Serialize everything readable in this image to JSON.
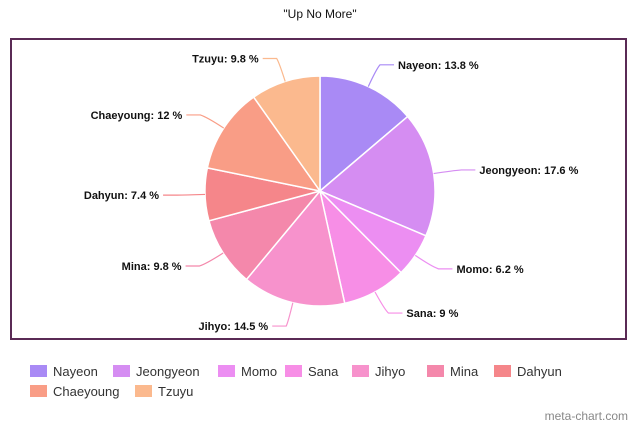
{
  "chart_data": {
    "type": "pie",
    "title": "\"Up No More\"",
    "slices": [
      {
        "label": "Nayeon",
        "value": 13.8,
        "display": "Nayeon: 13.8 %",
        "color": "#a98af5"
      },
      {
        "label": "Jeongyeon",
        "value": 17.6,
        "display": "Jeongyeon: 17.6 %",
        "color": "#d58df2"
      },
      {
        "label": "Momo",
        "value": 6.2,
        "display": "Momo: 6.2 %",
        "color": "#ec8ef2"
      },
      {
        "label": "Sana",
        "value": 9,
        "display": "Sana: 9 %",
        "color": "#f78ee6"
      },
      {
        "label": "Jihyo",
        "value": 14.5,
        "display": "Jihyo: 14.5 %",
        "color": "#f792cc"
      },
      {
        "label": "Mina",
        "value": 9.8,
        "display": "Mina: 9.8 %",
        "color": "#f488ab"
      },
      {
        "label": "Dahyun",
        "value": 7.4,
        "display": "Dahyun: 7.4 %",
        "color": "#f5868a"
      },
      {
        "label": "Chaeyoung",
        "value": 12,
        "display": "Chaeyoung: 12 %",
        "color": "#f99d86"
      },
      {
        "label": "Tzuyu",
        "value": 9.8,
        "display": "Tzuyu: 9.8 %",
        "color": "#fbb98e"
      }
    ],
    "legend_position": "bottom"
  },
  "watermark": "meta-chart.com"
}
